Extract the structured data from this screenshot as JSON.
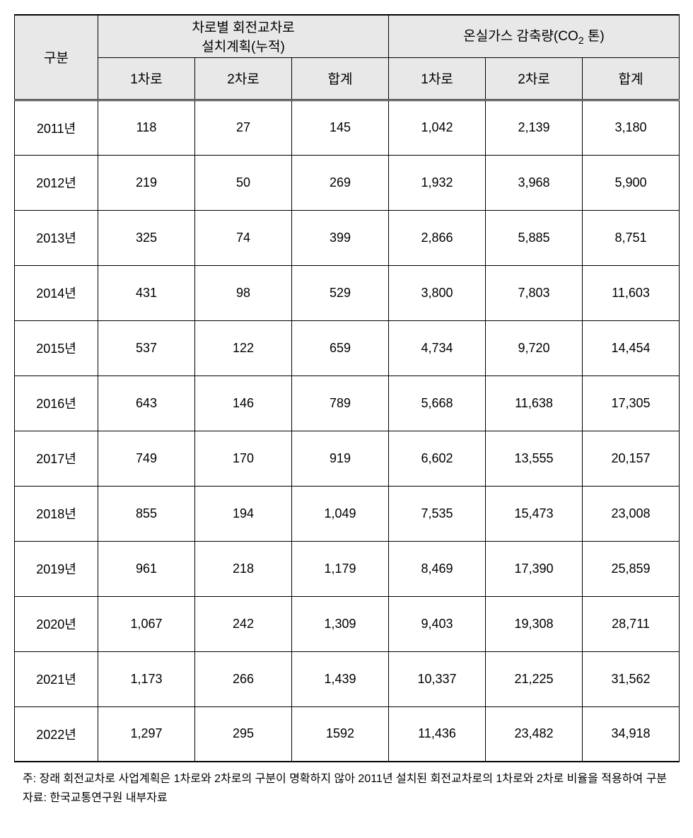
{
  "table": {
    "type": "table",
    "background_color": "#ffffff",
    "header_background": "#e8e8e8",
    "border_color": "#000000",
    "font_family": "Malgun Gothic",
    "header_fontsize": 19,
    "body_fontsize": 18,
    "columns": {
      "category": "구분",
      "group1": {
        "label": "차로별  회전교차로\n설치계획(누적)",
        "sub": [
          "1차로",
          "2차로",
          "합계"
        ]
      },
      "group2": {
        "label_prefix": "온실가스 감축량(CO",
        "label_subscript": "2",
        "label_suffix": " 톤)",
        "sub": [
          "1차로",
          "2차로",
          "합계"
        ]
      }
    },
    "rows": [
      {
        "year": "2011년",
        "a1": "118",
        "a2": "27",
        "a3": "145",
        "b1": "1,042",
        "b2": "2,139",
        "b3": "3,180"
      },
      {
        "year": "2012년",
        "a1": "219",
        "a2": "50",
        "a3": "269",
        "b1": "1,932",
        "b2": "3,968",
        "b3": "5,900"
      },
      {
        "year": "2013년",
        "a1": "325",
        "a2": "74",
        "a3": "399",
        "b1": "2,866",
        "b2": "5,885",
        "b3": "8,751"
      },
      {
        "year": "2014년",
        "a1": "431",
        "a2": "98",
        "a3": "529",
        "b1": "3,800",
        "b2": "7,803",
        "b3": "11,603"
      },
      {
        "year": "2015년",
        "a1": "537",
        "a2": "122",
        "a3": "659",
        "b1": "4,734",
        "b2": "9,720",
        "b3": "14,454"
      },
      {
        "year": "2016년",
        "a1": "643",
        "a2": "146",
        "a3": "789",
        "b1": "5,668",
        "b2": "11,638",
        "b3": "17,305"
      },
      {
        "year": "2017년",
        "a1": "749",
        "a2": "170",
        "a3": "919",
        "b1": "6,602",
        "b2": "13,555",
        "b3": "20,157"
      },
      {
        "year": "2018년",
        "a1": "855",
        "a2": "194",
        "a3": "1,049",
        "b1": "7,535",
        "b2": "15,473",
        "b3": "23,008"
      },
      {
        "year": "2019년",
        "a1": "961",
        "a2": "218",
        "a3": "1,179",
        "b1": "8,469",
        "b2": "17,390",
        "b3": "25,859"
      },
      {
        "year": "2020년",
        "a1": "1,067",
        "a2": "242",
        "a3": "1,309",
        "b1": "9,403",
        "b2": "19,308",
        "b3": "28,711"
      },
      {
        "year": "2021년",
        "a1": "1,173",
        "a2": "266",
        "a3": "1,439",
        "b1": "10,337",
        "b2": "21,225",
        "b3": "31,562"
      },
      {
        "year": "2022년",
        "a1": "1,297",
        "a2": "295",
        "a3": "1592",
        "b1": "11,436",
        "b2": "23,482",
        "b3": "34,918"
      }
    ]
  },
  "footnotes": {
    "note_label": "주:",
    "note_text": "장래 회전교차로 사업계획은 1차로와 2차로의 구분이 명확하지 않아 2011년 설치된 회전교차로의 1차로와 2차로 비율을 적용하여 구분",
    "source_label": "자료:",
    "source_text": "한국교통연구원 내부자료",
    "fontsize": 16
  }
}
